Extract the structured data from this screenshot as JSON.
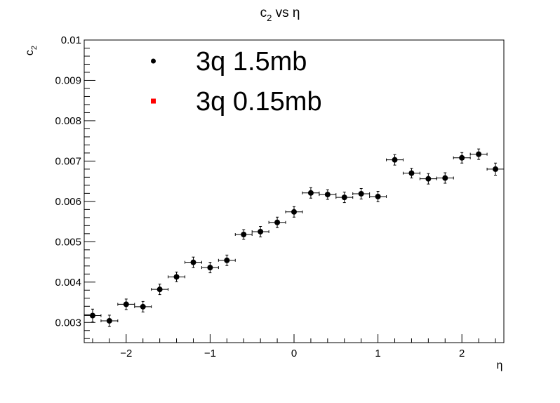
{
  "chart_data": {
    "type": "scatter",
    "title": "c2 vs η",
    "title_parts": {
      "base": "c",
      "sub": "2",
      "rest": " vs η"
    },
    "xlabel": "η",
    "ylabel_parts": {
      "base": "c",
      "sub": "2"
    },
    "xlim": [
      -2.5,
      2.5
    ],
    "ylim": [
      0.0025,
      0.01
    ],
    "x_ticks": [
      {
        "value": -2,
        "label": "−2"
      },
      {
        "value": -1,
        "label": "−1"
      },
      {
        "value": 0,
        "label": "0"
      },
      {
        "value": 1,
        "label": "1"
      },
      {
        "value": 2,
        "label": "2"
      }
    ],
    "y_ticks": [
      {
        "value": 0.003,
        "label": "0.003"
      },
      {
        "value": 0.004,
        "label": "0.004"
      },
      {
        "value": 0.005,
        "label": "0.005"
      },
      {
        "value": 0.006,
        "label": "0.006"
      },
      {
        "value": 0.007,
        "label": "0.007"
      },
      {
        "value": 0.008,
        "label": "0.008"
      },
      {
        "value": 0.009,
        "label": "0.009"
      },
      {
        "value": 0.01,
        "label": "0.01"
      }
    ],
    "grid": false,
    "legend_position": "top-left",
    "series": [
      {
        "name": "3q 1.5mb",
        "color": "#000000",
        "marker": "circle",
        "x_error": 0.1,
        "points": [
          {
            "x": -2.4,
            "y": 0.00317,
            "yerr": 0.00016
          },
          {
            "x": -2.2,
            "y": 0.00304,
            "yerr": 0.00014
          },
          {
            "x": -2.0,
            "y": 0.00345,
            "yerr": 0.00013
          },
          {
            "x": -1.8,
            "y": 0.00339,
            "yerr": 0.00013
          },
          {
            "x": -1.6,
            "y": 0.00382,
            "yerr": 0.00013
          },
          {
            "x": -1.4,
            "y": 0.00413,
            "yerr": 0.00012
          },
          {
            "x": -1.2,
            "y": 0.00449,
            "yerr": 0.00013
          },
          {
            "x": -1.0,
            "y": 0.00436,
            "yerr": 0.00013
          },
          {
            "x": -0.8,
            "y": 0.00454,
            "yerr": 0.00013
          },
          {
            "x": -0.6,
            "y": 0.00518,
            "yerr": 0.00012
          },
          {
            "x": -0.4,
            "y": 0.00525,
            "yerr": 0.00013
          },
          {
            "x": -0.2,
            "y": 0.00548,
            "yerr": 0.00013
          },
          {
            "x": 0.0,
            "y": 0.00574,
            "yerr": 0.00013
          },
          {
            "x": 0.2,
            "y": 0.00621,
            "yerr": 0.00013
          },
          {
            "x": 0.4,
            "y": 0.00617,
            "yerr": 0.00012
          },
          {
            "x": 0.6,
            "y": 0.0061,
            "yerr": 0.00013
          },
          {
            "x": 0.8,
            "y": 0.00619,
            "yerr": 0.00013
          },
          {
            "x": 1.0,
            "y": 0.00612,
            "yerr": 0.00013
          },
          {
            "x": 1.2,
            "y": 0.00703,
            "yerr": 0.00013
          },
          {
            "x": 1.4,
            "y": 0.0067,
            "yerr": 0.00012
          },
          {
            "x": 1.6,
            "y": 0.00656,
            "yerr": 0.00013
          },
          {
            "x": 1.8,
            "y": 0.00658,
            "yerr": 0.00013
          },
          {
            "x": 2.0,
            "y": 0.00708,
            "yerr": 0.00013
          },
          {
            "x": 2.2,
            "y": 0.00717,
            "yerr": 0.00013
          },
          {
            "x": 2.4,
            "y": 0.0068,
            "yerr": 0.00015
          }
        ]
      },
      {
        "name": "3q 0.15mb",
        "color": "#ff0000",
        "marker": "square",
        "points": []
      }
    ]
  }
}
